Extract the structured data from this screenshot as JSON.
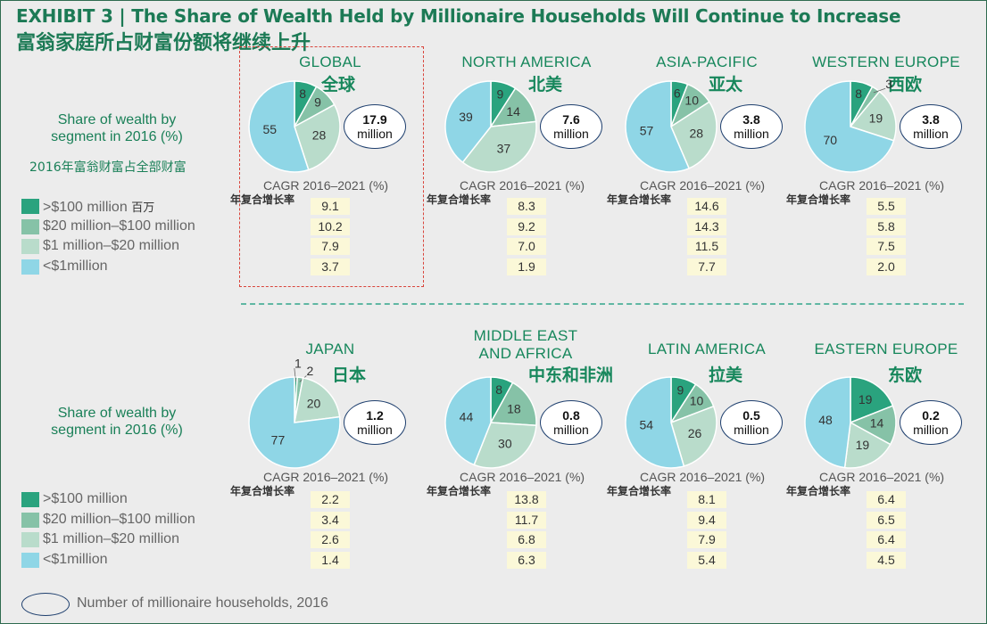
{
  "title_en": "EXHIBIT 3 | The Share of Wealth Held by Millionaire Households Will Continue to Increase",
  "title_zh": "富翁家庭所占财富份额将继续上升",
  "share_label_en": "Share of wealth by segment in 2016 (%)",
  "share_label_zh": "2016年富翁财富占全部财富",
  "cagr_en": "CAGR 2016–2021 (%)",
  "cagr_zh": "年复合增长率",
  "colors": {
    "seg1": "#2aa37e",
    "seg2": "#86c2a7",
    "seg3": "#b9dccb",
    "seg4": "#8fd6e6"
  },
  "legend": [
    {
      "label": "&gt;$100 million",
      "zh": "百万"
    },
    {
      "label": "$20 million–$100 million"
    },
    {
      "label": "$1 million–$20 million"
    },
    {
      "label": "&lt;$1million"
    }
  ],
  "footnote": "Number of millionaire households, 2016",
  "million_unit": "million",
  "chart_data": [
    {
      "type": "pie",
      "region": "GLOBAL",
      "region_zh": "全球",
      "slices": [
        8,
        9,
        28,
        55
      ],
      "households": "17.9",
      "cagr": [
        "9.1",
        "10.2",
        "7.9",
        "3.7"
      ]
    },
    {
      "type": "pie",
      "region": "NORTH AMERICA",
      "region_zh": "北美",
      "slices": [
        9,
        14,
        37,
        39
      ],
      "households": "7.6",
      "cagr": [
        "8.3",
        "9.2",
        "7.0",
        "1.9"
      ]
    },
    {
      "type": "pie",
      "region": "ASIA-PACIFIC",
      "region_zh": "亚太",
      "slices": [
        6,
        10,
        28,
        57
      ],
      "households": "3.8",
      "cagr": [
        "14.6",
        "14.3",
        "11.5",
        "7.7"
      ]
    },
    {
      "type": "pie",
      "region": "WESTERN EUROPE",
      "region_zh": "西欧",
      "slices": [
        8,
        3,
        19,
        70
      ],
      "households": "3.8",
      "cagr": [
        "5.5",
        "5.8",
        "7.5",
        "2.0"
      ]
    },
    {
      "type": "pie",
      "region": "JAPAN",
      "region_zh": "日本",
      "slices": [
        1,
        2,
        20,
        77
      ],
      "households": "1.2",
      "cagr": [
        "2.2",
        "3.4",
        "2.6",
        "1.4"
      ]
    },
    {
      "type": "pie",
      "region": "MIDDLE EAST AND AFRICA",
      "region_zh": "中东和非洲",
      "slices": [
        8,
        18,
        30,
        44
      ],
      "households": "0.8",
      "cagr": [
        "13.8",
        "11.7",
        "6.8",
        "6.3"
      ]
    },
    {
      "type": "pie",
      "region": "LATIN AMERICA",
      "region_zh": "拉美",
      "slices": [
        9,
        10,
        26,
        54
      ],
      "households": "0.5",
      "cagr": [
        "8.1",
        "9.4",
        "7.9",
        "5.4"
      ]
    },
    {
      "type": "pie",
      "region": "EASTERN EUROPE",
      "region_zh": "东欧",
      "slices": [
        19,
        14,
        19,
        48
      ],
      "households": "0.2",
      "cagr": [
        "6.4",
        "6.5",
        "6.4",
        "4.5"
      ]
    }
  ]
}
